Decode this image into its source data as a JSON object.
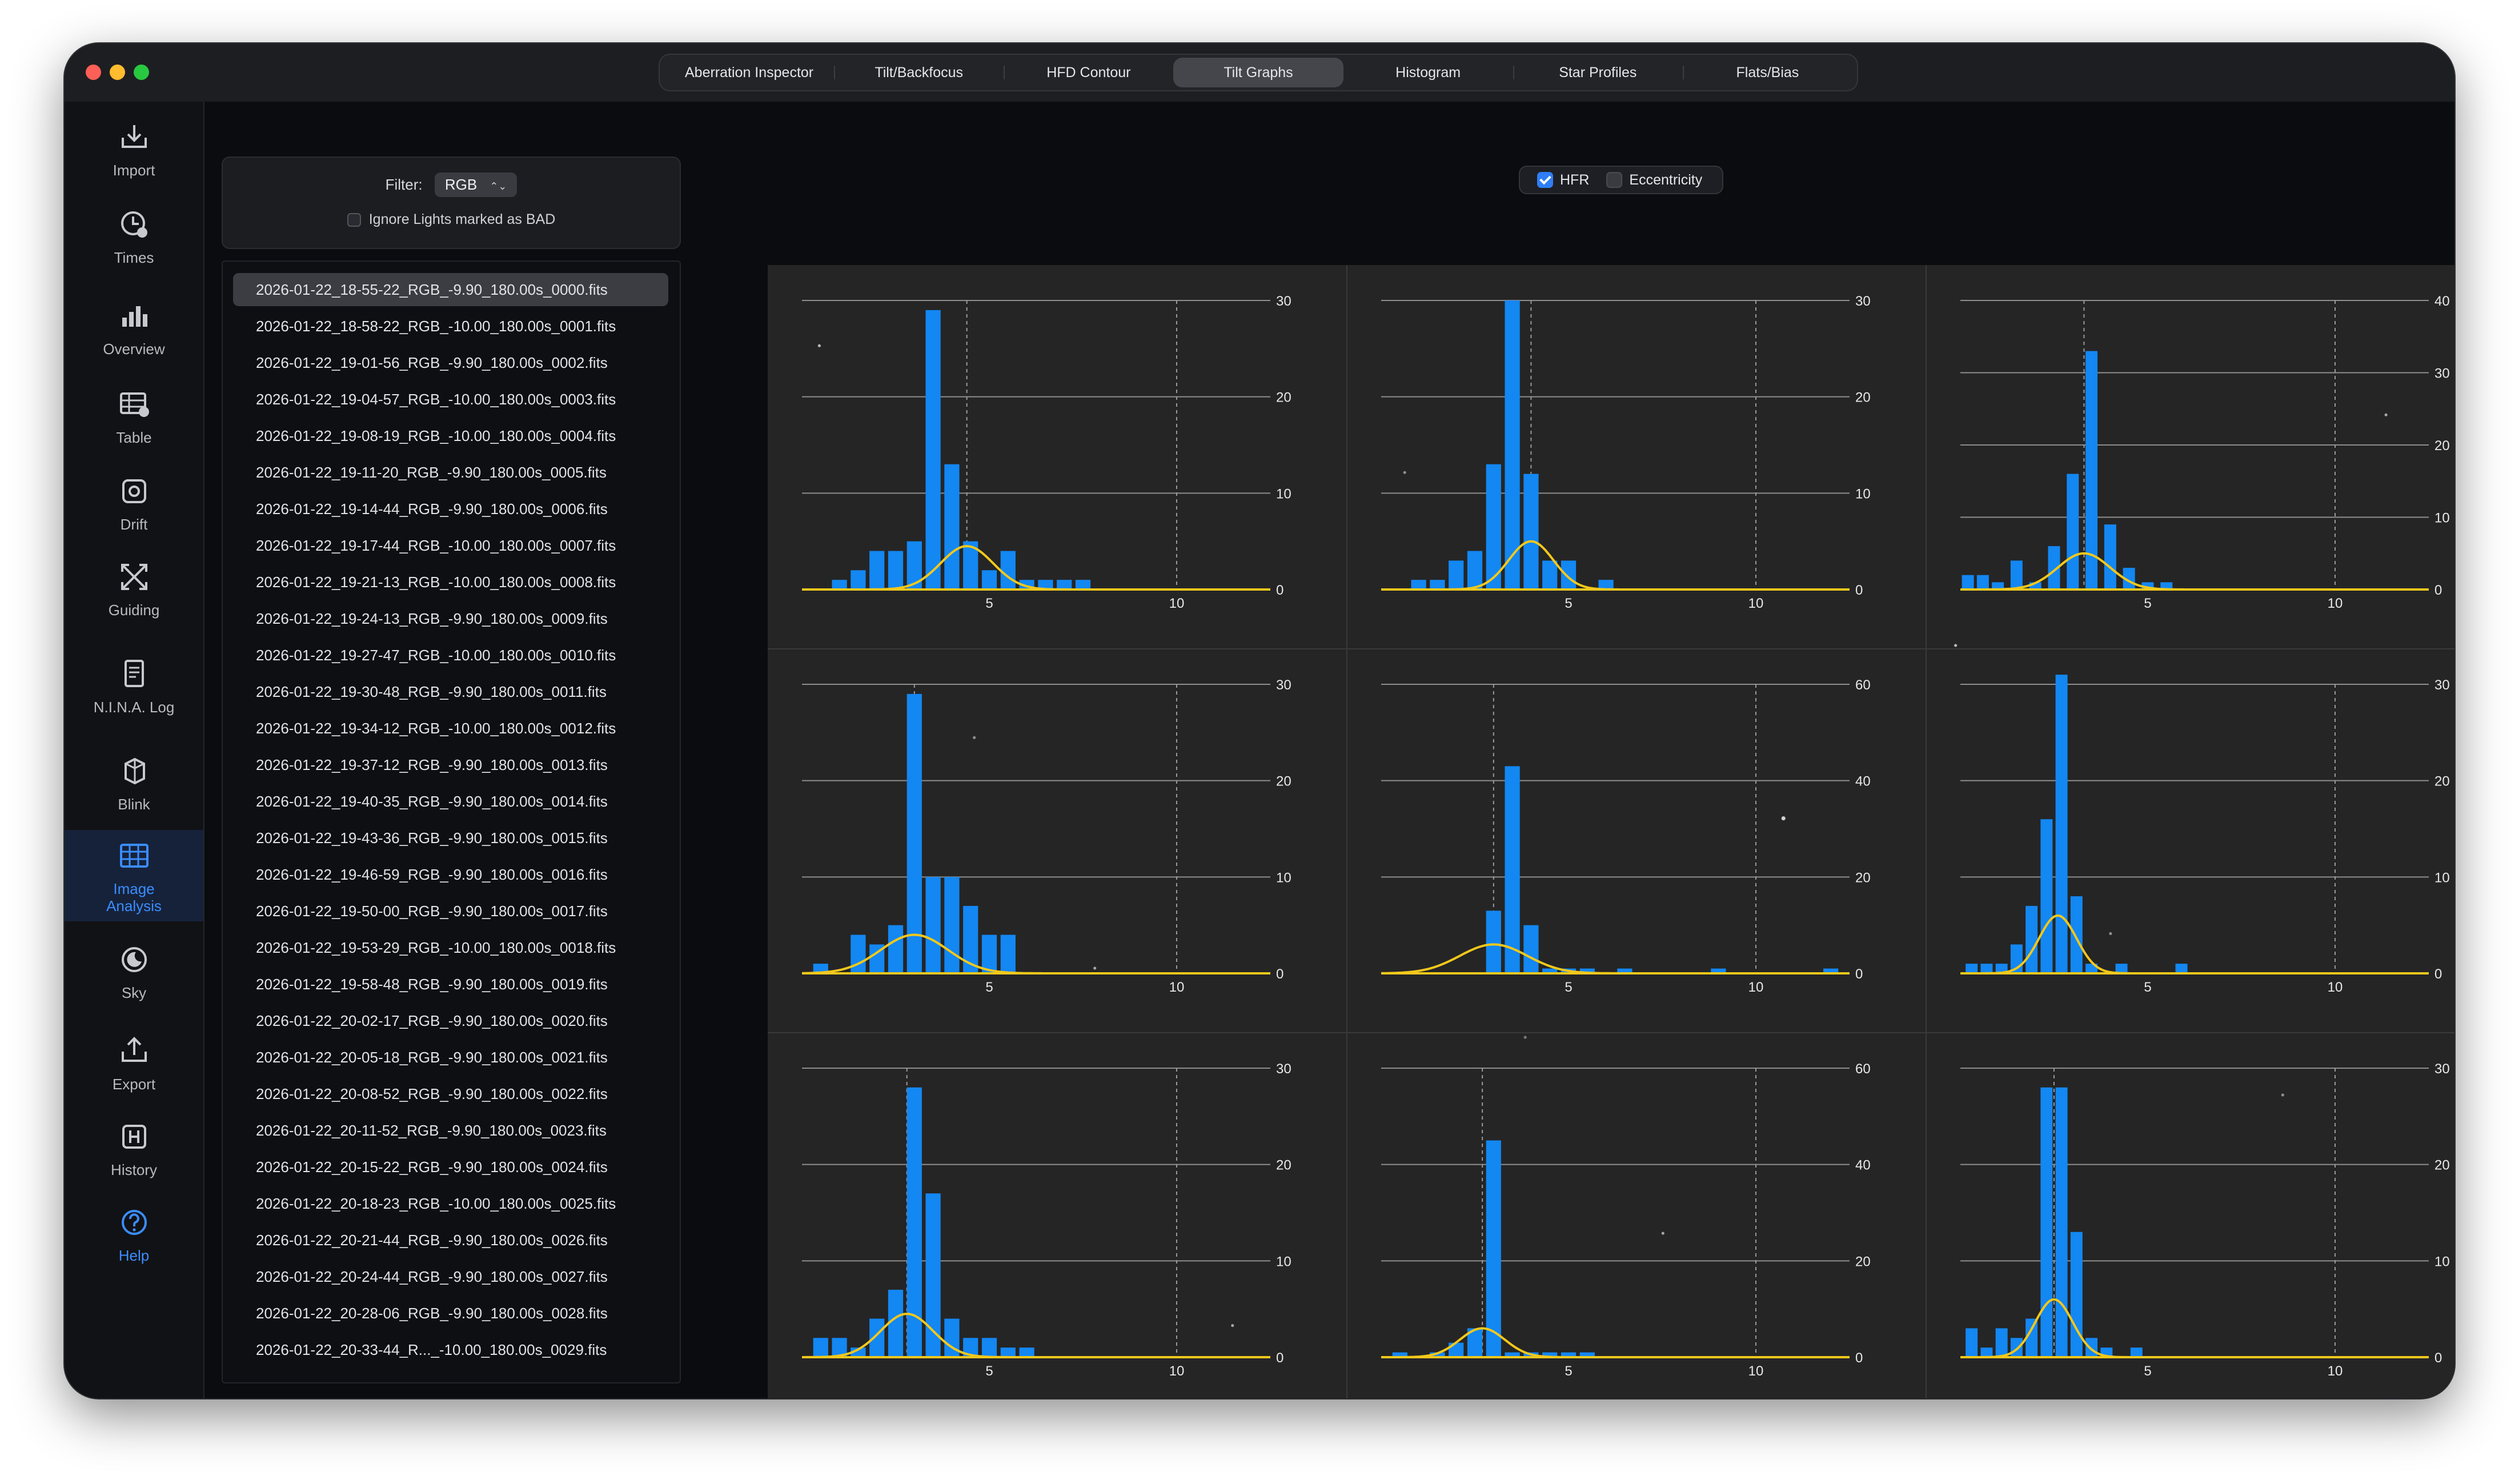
{
  "tabs": [
    {
      "label": "Aberration Inspector",
      "active": false
    },
    {
      "label": "Tilt/Backfocus",
      "active": false
    },
    {
      "label": "HFD Contour",
      "active": false
    },
    {
      "label": "Tilt Graphs",
      "active": true
    },
    {
      "label": "Histogram",
      "active": false
    },
    {
      "label": "Star Profiles",
      "active": false
    },
    {
      "label": "Flats/Bias",
      "active": false
    }
  ],
  "sidebar": {
    "items": [
      {
        "label": "Import",
        "icon": "import-icon"
      },
      {
        "label": "Times",
        "icon": "clock-icon"
      },
      {
        "label": "Overview",
        "icon": "bar-chart-icon"
      },
      {
        "label": "Table",
        "icon": "table-icon"
      },
      {
        "label": "Drift",
        "icon": "drift-icon"
      },
      {
        "label": "Guiding",
        "icon": "guiding-icon"
      },
      {
        "label": "N.I.N.A. Log",
        "icon": "document-icon"
      },
      {
        "label": "Blink",
        "icon": "blink-icon"
      },
      {
        "label": "Image Analysis",
        "icon": "grid-icon",
        "active": true
      },
      {
        "label": "Sky",
        "icon": "sky-icon"
      },
      {
        "label": "Export",
        "icon": "export-icon"
      },
      {
        "label": "History",
        "icon": "history-icon"
      },
      {
        "label": "Help",
        "icon": "help-icon"
      }
    ]
  },
  "filter": {
    "label": "Filter:",
    "value": "RGB",
    "ignore_bad_label": "Ignore Lights marked as BAD",
    "ignore_bad_checked": false
  },
  "files": [
    "2026-01-22_18-55-22_RGB_-9.90_180.00s_0000.fits",
    "2026-01-22_18-58-22_RGB_-10.00_180.00s_0001.fits",
    "2026-01-22_19-01-56_RGB_-9.90_180.00s_0002.fits",
    "2026-01-22_19-04-57_RGB_-10.00_180.00s_0003.fits",
    "2026-01-22_19-08-19_RGB_-10.00_180.00s_0004.fits",
    "2026-01-22_19-11-20_RGB_-9.90_180.00s_0005.fits",
    "2026-01-22_19-14-44_RGB_-9.90_180.00s_0006.fits",
    "2026-01-22_19-17-44_RGB_-10.00_180.00s_0007.fits",
    "2026-01-22_19-21-13_RGB_-10.00_180.00s_0008.fits",
    "2026-01-22_19-24-13_RGB_-9.90_180.00s_0009.fits",
    "2026-01-22_19-27-47_RGB_-10.00_180.00s_0010.fits",
    "2026-01-22_19-30-48_RGB_-9.90_180.00s_0011.fits",
    "2026-01-22_19-34-12_RGB_-10.00_180.00s_0012.fits",
    "2026-01-22_19-37-12_RGB_-9.90_180.00s_0013.fits",
    "2026-01-22_19-40-35_RGB_-9.90_180.00s_0014.fits",
    "2026-01-22_19-43-36_RGB_-9.90_180.00s_0015.fits",
    "2026-01-22_19-46-59_RGB_-9.90_180.00s_0016.fits",
    "2026-01-22_19-50-00_RGB_-9.90_180.00s_0017.fits",
    "2026-01-22_19-53-29_RGB_-10.00_180.00s_0018.fits",
    "2026-01-22_19-58-48_RGB_-9.90_180.00s_0019.fits",
    "2026-01-22_20-02-17_RGB_-9.90_180.00s_0020.fits",
    "2026-01-22_20-05-18_RGB_-9.90_180.00s_0021.fits",
    "2026-01-22_20-08-52_RGB_-9.90_180.00s_0022.fits",
    "2026-01-22_20-11-52_RGB_-9.90_180.00s_0023.fits",
    "2026-01-22_20-15-22_RGB_-9.90_180.00s_0024.fits",
    "2026-01-22_20-18-23_RGB_-10.00_180.00s_0025.fits",
    "2026-01-22_20-21-44_RGB_-9.90_180.00s_0026.fits",
    "2026-01-22_20-24-44_RGB_-9.90_180.00s_0027.fits",
    "2026-01-22_20-28-06_RGB_-9.90_180.00s_0028.fits",
    "2026-01-22_20-33-44_R..._-10.00_180.00s_0029.fits"
  ],
  "selected_file_index": 0,
  "metric_toggles": [
    {
      "label": "HFR",
      "checked": true
    },
    {
      "label": "Eccentricity",
      "checked": false
    }
  ],
  "colors": {
    "bar": "#1387f2",
    "curve": "#f2c81c",
    "grid": "#8e8e8e",
    "accent": "#3a8dff"
  },
  "chart_data": [
    {
      "type": "bar",
      "panel": "top-left",
      "x": [
        1,
        1.5,
        2,
        2.5,
        3,
        3.5,
        4,
        4.5,
        5,
        5.5,
        6,
        6.5,
        7,
        7.5,
        8
      ],
      "values": [
        1,
        2,
        4,
        4,
        5,
        29,
        13,
        5,
        2,
        4,
        1,
        1,
        1,
        1,
        0
      ],
      "ylim": [
        0,
        30
      ],
      "yticks": [
        0,
        10,
        20,
        30
      ],
      "xticks": [
        5,
        10
      ],
      "xlim": [
        0,
        12.5
      ],
      "fit_peak": 4.5,
      "fit_center": 4.4,
      "fit_sigma": 0.7
    },
    {
      "type": "bar",
      "panel": "top-center",
      "x": [
        1,
        1.5,
        2,
        2.5,
        3,
        3.5,
        4,
        4.5,
        5,
        5.5,
        6,
        6.5,
        7,
        7.5,
        8
      ],
      "values": [
        1,
        1,
        3,
        4,
        13,
        30,
        12,
        3,
        3,
        0,
        1,
        0,
        0,
        0,
        0
      ],
      "ylim": [
        0,
        30
      ],
      "yticks": [
        0,
        10,
        20,
        30
      ],
      "xticks": [
        5,
        10
      ],
      "xlim": [
        0,
        12.5
      ],
      "fit_peak": 5,
      "fit_center": 4.0,
      "fit_sigma": 0.6
    },
    {
      "type": "bar",
      "panel": "top-right",
      "x": [
        0.2,
        0.6,
        1,
        1.5,
        2,
        2.5,
        3,
        3.5,
        4,
        4.5,
        5,
        5.5,
        6,
        6.5,
        7,
        7.5,
        8
      ],
      "values": [
        2,
        2,
        1,
        4,
        1,
        6,
        16,
        33,
        9,
        3,
        1,
        1,
        0,
        0,
        0,
        0,
        0
      ],
      "ylim": [
        0,
        40
      ],
      "yticks": [
        0,
        10,
        20,
        30,
        40
      ],
      "xticks": [
        5,
        10
      ],
      "xlim": [
        0,
        12.5
      ],
      "fit_peak": 5,
      "fit_center": 3.3,
      "fit_sigma": 0.7
    },
    {
      "type": "bar",
      "panel": "middle-left",
      "x": [
        0.5,
        1,
        1.5,
        2,
        2.5,
        3,
        3.5,
        4,
        4.5,
        5,
        5.5,
        6,
        6.5,
        7,
        7.5,
        8
      ],
      "values": [
        1,
        0,
        4,
        3,
        5,
        29,
        10,
        10,
        7,
        4,
        4,
        0,
        0,
        0,
        0,
        0
      ],
      "ylim": [
        0,
        30
      ],
      "yticks": [
        0,
        10,
        20,
        30
      ],
      "xticks": [
        5,
        10
      ],
      "xlim": [
        0,
        12.5
      ],
      "fit_peak": 4,
      "fit_center": 3.0,
      "fit_sigma": 0.9
    },
    {
      "type": "bar",
      "panel": "middle-center",
      "x": [
        1,
        1.5,
        2,
        2.5,
        3,
        3.5,
        4,
        4.5,
        5,
        5.5,
        6,
        6.5,
        7,
        7.5,
        8,
        8.5,
        9,
        9.5,
        10,
        10.5,
        11,
        11.5,
        12
      ],
      "values": [
        0,
        0,
        0,
        0,
        13,
        43,
        10,
        1,
        1,
        1,
        0,
        1,
        0,
        0,
        0,
        0,
        1,
        0,
        0,
        0,
        0,
        0,
        1
      ],
      "ylim": [
        0,
        60
      ],
      "yticks": [
        0,
        20,
        40,
        60
      ],
      "xticks": [
        5,
        10
      ],
      "xlim": [
        0,
        12.5
      ],
      "fit_peak": 6,
      "fit_center": 3.0,
      "fit_sigma": 0.9
    },
    {
      "type": "bar",
      "panel": "middle-right",
      "x": [
        0.3,
        0.7,
        1.1,
        1.5,
        1.9,
        2.3,
        2.7,
        3.1,
        3.5,
        3.9,
        4.3,
        4.7,
        5.1,
        5.5,
        5.9,
        6.3,
        6.7,
        7.1,
        7.5,
        7.9
      ],
      "values": [
        1,
        1,
        1,
        3,
        7,
        16,
        31,
        8,
        1,
        0,
        1,
        0,
        0,
        0,
        1,
        0,
        0,
        0,
        0,
        0
      ],
      "ylim": [
        0,
        30
      ],
      "yticks": [
        0,
        10,
        20,
        30
      ],
      "xticks": [
        5,
        10
      ],
      "xlim": [
        0,
        12.5
      ],
      "fit_peak": 6,
      "fit_center": 2.6,
      "fit_sigma": 0.5
    },
    {
      "type": "bar",
      "panel": "bottom-left",
      "x": [
        0.5,
        1,
        1.5,
        2,
        2.5,
        3,
        3.5,
        4,
        4.5,
        5,
        5.5,
        6,
        6.5,
        7,
        7.5,
        8
      ],
      "values": [
        2,
        2,
        1,
        4,
        7,
        28,
        17,
        4,
        2,
        2,
        1,
        1,
        0,
        0,
        0,
        0
      ],
      "ylim": [
        0,
        30
      ],
      "yticks": [
        0,
        10,
        20,
        30
      ],
      "xticks": [
        5,
        10
      ],
      "xlim": [
        0,
        12.5
      ],
      "fit_peak": 4.5,
      "fit_center": 2.8,
      "fit_sigma": 0.7
    },
    {
      "type": "bar",
      "panel": "bottom-center",
      "x": [
        0.5,
        1,
        1.5,
        2,
        2.5,
        3,
        3.5,
        4,
        4.5,
        5,
        5.5,
        6,
        6.5,
        7,
        7.5,
        8
      ],
      "values": [
        1,
        0,
        1,
        3,
        6,
        45,
        1,
        1,
        1,
        1,
        1,
        0,
        0,
        0,
        0,
        0
      ],
      "ylim": [
        0,
        60
      ],
      "yticks": [
        0,
        20,
        40,
        60
      ],
      "xticks": [
        5,
        10
      ],
      "xlim": [
        0,
        12.5
      ],
      "fit_peak": 6,
      "fit_center": 2.7,
      "fit_sigma": 0.6
    },
    {
      "type": "bar",
      "panel": "bottom-right",
      "x": [
        0.3,
        0.7,
        1.1,
        1.5,
        1.9,
        2.3,
        2.7,
        3.1,
        3.5,
        3.9,
        4.3,
        4.7,
        5.1,
        5.5,
        5.9,
        6.3,
        6.7,
        7.1,
        7.5,
        7.9
      ],
      "values": [
        3,
        1,
        3,
        2,
        4,
        28,
        28,
        13,
        2,
        1,
        0,
        1,
        0,
        0,
        0,
        0,
        0,
        0,
        0,
        0
      ],
      "ylim": [
        0,
        30
      ],
      "yticks": [
        0,
        10,
        20,
        30
      ],
      "xticks": [
        5,
        10
      ],
      "xlim": [
        0,
        12.5
      ],
      "fit_peak": 6,
      "fit_center": 2.5,
      "fit_sigma": 0.5
    }
  ]
}
